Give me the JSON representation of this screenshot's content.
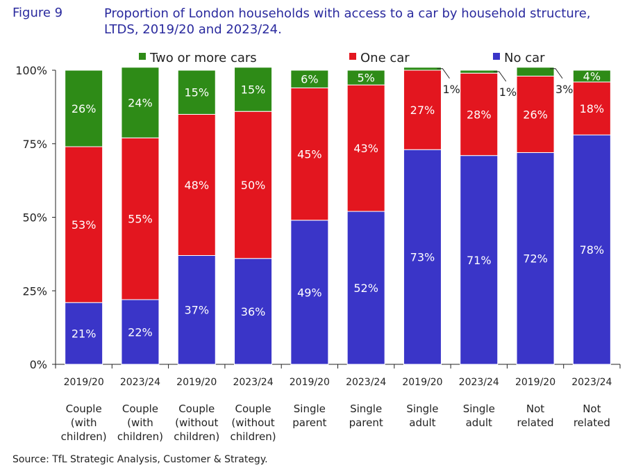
{
  "figure": {
    "label": "Figure 9",
    "title": "Proportion of London households with access to a car by household structure, LTDS, 2019/20 and 2023/24."
  },
  "source": "Source: TfL Strategic Analysis, Customer & Strategy.",
  "chart_data": {
    "type": "bar",
    "stacked": true,
    "ylim": [
      0,
      100
    ],
    "yticks": [
      "0%",
      "25%",
      "50%",
      "75%",
      "100%"
    ],
    "legend_position": "top",
    "categories": [
      {
        "year": "2019/20",
        "group": [
          "Couple",
          "(with",
          "children)"
        ]
      },
      {
        "year": "2023/24",
        "group": [
          "Couple",
          "(with",
          "children)"
        ]
      },
      {
        "year": "2019/20",
        "group": [
          "Couple",
          "(without",
          "children)"
        ]
      },
      {
        "year": "2023/24",
        "group": [
          "Couple",
          "(without",
          "children)"
        ]
      },
      {
        "year": "2019/20",
        "group": [
          "Single",
          "parent"
        ]
      },
      {
        "year": "2023/24",
        "group": [
          "Single",
          "parent"
        ]
      },
      {
        "year": "2019/20",
        "group": [
          "Single",
          "adult"
        ]
      },
      {
        "year": "2023/24",
        "group": [
          "Single",
          "adult"
        ]
      },
      {
        "year": "2019/20",
        "group": [
          "Not",
          "related"
        ]
      },
      {
        "year": "2023/24",
        "group": [
          "Not",
          "related"
        ]
      }
    ],
    "series": [
      {
        "name": "No car",
        "color": "#3a35c8",
        "values": [
          21,
          22,
          37,
          36,
          49,
          52,
          73,
          71,
          72,
          78
        ],
        "labels": [
          "21%",
          "22%",
          "37%",
          "36%",
          "49%",
          "52%",
          "73%",
          "71%",
          "72%",
          "78%"
        ]
      },
      {
        "name": "One car",
        "color": "#e3161f",
        "values": [
          53,
          55,
          48,
          50,
          45,
          43,
          27,
          28,
          26,
          18
        ],
        "labels": [
          "53%",
          "55%",
          "48%",
          "50%",
          "45%",
          "43%",
          "27%",
          "28%",
          "26%",
          "18%"
        ]
      },
      {
        "name": "Two or more cars",
        "color": "#2e8b17",
        "values": [
          26,
          24,
          15,
          15,
          6,
          5,
          1,
          1,
          3,
          4
        ],
        "labels": [
          "26%",
          "24%",
          "15%",
          "15%",
          "6%",
          "5%",
          "1%",
          "1%",
          "3%",
          "4%"
        ]
      }
    ],
    "legend_order": [
      "Two or more cars",
      "One car",
      "No car"
    ],
    "outside_labels": [
      6,
      7,
      8
    ]
  }
}
